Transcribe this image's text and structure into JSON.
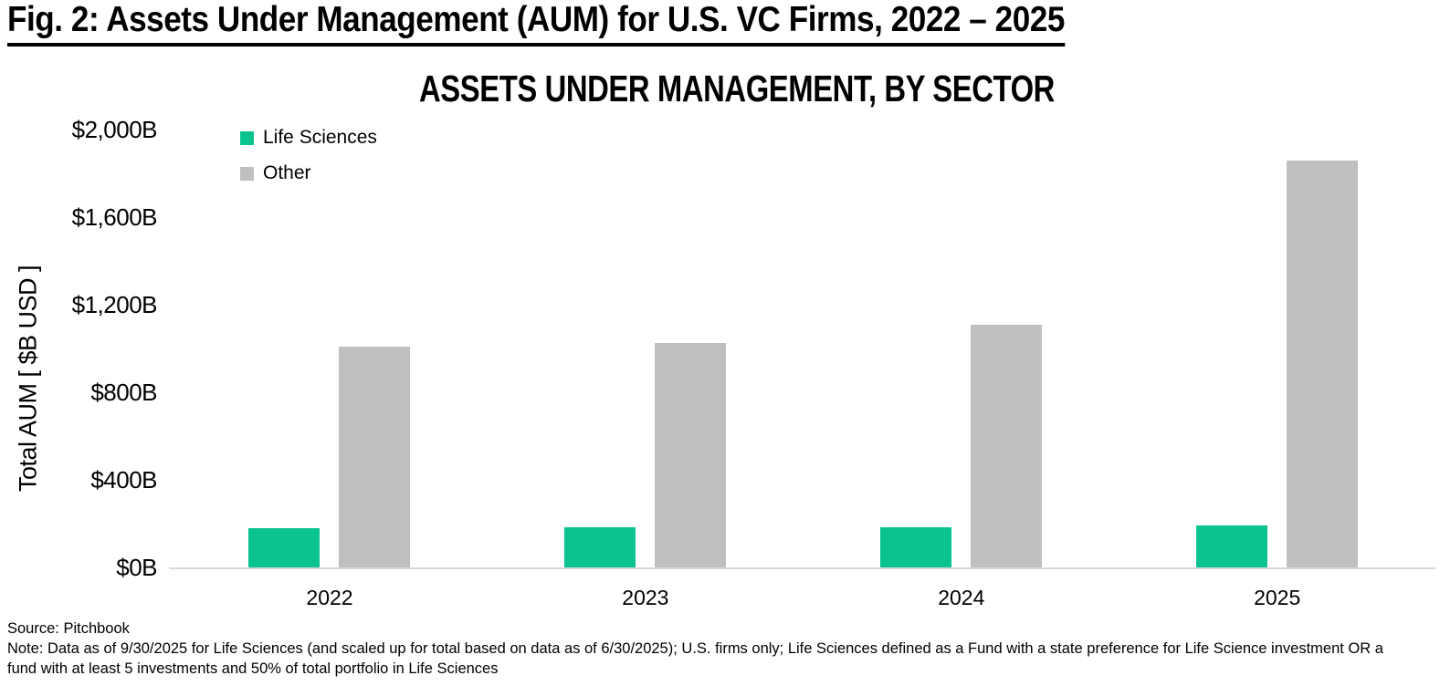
{
  "page_title": "Fig. 2: Assets Under Management (AUM) for U.S. VC Firms, 2022 – 2025",
  "chart_data": {
    "type": "bar",
    "title": "ASSETS UNDER MANAGEMENT, BY SECTOR",
    "categories": [
      "2022",
      "2023",
      "2024",
      "2025"
    ],
    "series": [
      {
        "name": "Life Sciences",
        "color": "#0bc48d",
        "values": [
          180,
          185,
          182,
          193
        ]
      },
      {
        "name": "Other",
        "color": "#bfbfbf",
        "values": [
          1010,
          1025,
          1110,
          1860
        ]
      }
    ],
    "xlabel": "",
    "ylabel": "Total AUM [ $B USD ]",
    "yticks": [
      {
        "label": "$2,000B",
        "value": 2000
      },
      {
        "label": "$1,600B",
        "value": 1600
      },
      {
        "label": "$1,200B",
        "value": 1200
      },
      {
        "label": "$800B",
        "value": 800
      },
      {
        "label": "$400B",
        "value": 400
      },
      {
        "label": "$0B",
        "value": 0
      }
    ],
    "ylim": [
      0,
      2000
    ],
    "units": "$B USD",
    "grid": false,
    "legend_position": "top-left",
    "axis_line_color": "#d9d9d9"
  },
  "footer": {
    "source": "Source: Pitchbook",
    "note": "Note: Data as of 9/30/2025 for Life Sciences (and scaled up for total based on data as of 6/30/2025); U.S. firms only; Life Sciences defined as a Fund with a state preference for Life Science investment OR a fund with at least 5 investments and 50% of total portfolio in Life Sciences"
  }
}
